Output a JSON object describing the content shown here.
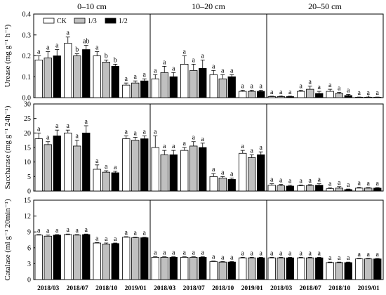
{
  "columns": [
    "0–10 cm",
    "10–20 cm",
    "20–50 cm"
  ],
  "dates": [
    "2018/03",
    "2018/07",
    "2018/10",
    "2019/01"
  ],
  "legend": [
    {
      "name": "CK",
      "color": "#ffffff"
    },
    {
      "name": "1/3",
      "color": "#c0c0c0"
    },
    {
      "name": "1/2",
      "color": "#000000"
    }
  ],
  "chart_data": [
    {
      "type": "bar",
      "ylabel": "Urease (mg g⁻¹ h⁻¹)",
      "ylim": [
        0,
        0.4
      ],
      "yticks": [
        "0.0",
        "0.1",
        "0.2",
        "0.3",
        "0.4"
      ],
      "yticks_values": [
        0,
        0.1,
        0.2,
        0.3,
        0.4
      ],
      "depths": [
        {
          "values": [
            [
              0.18,
              0.19,
              0.2
            ],
            [
              0.26,
              0.2,
              0.23
            ],
            [
              0.2,
              0.17,
              0.15
            ],
            [
              0.06,
              0.07,
              0.08
            ]
          ],
          "errors": [
            [
              0.02,
              0.03,
              0.03
            ],
            [
              0.03,
              0.01,
              0.02
            ],
            [
              0.02,
              0.01,
              0.01
            ],
            [
              0.01,
              0.01,
              0.01
            ]
          ],
          "letters": [
            [
              "a",
              "a",
              "a"
            ],
            [
              "a",
              "b",
              "ab"
            ],
            [
              "a",
              "b",
              "b"
            ],
            [
              "a",
              "a",
              "a"
            ]
          ]
        },
        {
          "values": [
            [
              0.09,
              0.12,
              0.1
            ],
            [
              0.16,
              0.13,
              0.14
            ],
            [
              0.11,
              0.09,
              0.1
            ],
            [
              0.03,
              0.03,
              0.03
            ]
          ],
          "errors": [
            [
              0.02,
              0.03,
              0.02
            ],
            [
              0.04,
              0.03,
              0.04
            ],
            [
              0.02,
              0.02,
              0.01
            ],
            [
              0.005,
              0.005,
              0.005
            ]
          ],
          "letters": [
            [
              "a",
              "a",
              "a"
            ],
            [
              "a",
              "a",
              "a"
            ],
            [
              "a",
              "a",
              "a"
            ],
            [
              "a",
              "a",
              "a"
            ]
          ]
        },
        {
          "values": [
            [
              0.005,
              0.005,
              0.005
            ],
            [
              0.03,
              0.04,
              0.02
            ],
            [
              0.03,
              0.02,
              0.01
            ],
            [
              0.002,
              0.002,
              0.002
            ]
          ],
          "errors": [
            [
              0.002,
              0.002,
              0.002
            ],
            [
              0.005,
              0.015,
              0.01
            ],
            [
              0.01,
              0.005,
              0.005
            ],
            [
              0.001,
              0.001,
              0.001
            ]
          ],
          "letters": [
            [
              "a",
              "a",
              "a"
            ],
            [
              "a",
              "a",
              "a"
            ],
            [
              "a",
              "a",
              "a"
            ],
            [
              "a",
              "a",
              "a"
            ]
          ]
        }
      ]
    },
    {
      "type": "bar",
      "ylabel": "Saccharase (mg g⁻¹ 24h⁻¹)",
      "ylim": [
        0,
        30
      ],
      "yticks": [
        "0",
        "5",
        "10",
        "15",
        "20",
        "25",
        "30"
      ],
      "yticks_values": [
        0,
        5,
        10,
        15,
        20,
        25,
        30
      ],
      "depths": [
        {
          "values": [
            [
              18,
              16,
              19
            ],
            [
              20,
              15.5,
              20
            ],
            [
              7.5,
              6.5,
              6.3
            ],
            [
              18,
              17.5,
              18
            ]
          ],
          "errors": [
            [
              2,
              1,
              2
            ],
            [
              1,
              2,
              2.5
            ],
            [
              1.5,
              0.5,
              0.5
            ],
            [
              1,
              1,
              1
            ]
          ],
          "letters": [
            [
              "a",
              "a",
              "a"
            ],
            [
              "a",
              "a",
              "a"
            ],
            [
              "a",
              "a",
              "a"
            ],
            [
              "a",
              "a",
              "a"
            ]
          ]
        },
        {
          "values": [
            [
              15,
              12.5,
              12.5
            ],
            [
              14,
              15.5,
              15
            ],
            [
              5,
              4.5,
              4
            ],
            [
              13,
              11.5,
              12.5
            ]
          ],
          "errors": [
            [
              4,
              1.5,
              1.5
            ],
            [
              1,
              1.5,
              1.5
            ],
            [
              1,
              0.5,
              0.5
            ],
            [
              1,
              1,
              1
            ]
          ],
          "letters": [
            [
              "a",
              "a",
              "a"
            ],
            [
              "a",
              "a",
              "a"
            ],
            [
              "a",
              "a",
              "a"
            ],
            [
              "a",
              "a",
              "a"
            ]
          ]
        },
        {
          "values": [
            [
              2,
              1.8,
              1.7
            ],
            [
              1.8,
              1.9,
              2
            ],
            [
              0.8,
              1,
              0.5
            ],
            [
              1,
              1,
              1
            ]
          ],
          "errors": [
            [
              0.5,
              0.5,
              0.3
            ],
            [
              0.3,
              0.3,
              0.5
            ],
            [
              0.3,
              0.5,
              0.2
            ],
            [
              0.3,
              0.2,
              0.2
            ]
          ],
          "letters": [
            [
              "a",
              "a",
              "a"
            ],
            [
              "a",
              "a",
              "a"
            ],
            [
              "a",
              "a",
              "a"
            ],
            [
              "a",
              "a",
              "a"
            ]
          ]
        }
      ]
    },
    {
      "type": "bar",
      "ylabel": "Catalase (ml g⁻¹ 20min⁻¹)",
      "ylim": [
        0,
        15
      ],
      "yticks": [
        "0",
        "3",
        "6",
        "9",
        "12",
        "15"
      ],
      "yticks_values": [
        0,
        3,
        6,
        9,
        12,
        15
      ],
      "depths": [
        {
          "values": [
            [
              8.4,
              8.2,
              8.4
            ],
            [
              8.5,
              8.4,
              8.5
            ],
            [
              6.9,
              6.7,
              6.8
            ],
            [
              8.0,
              7.9,
              7.9
            ]
          ],
          "errors": [
            [
              0.1,
              0.2,
              0.1
            ],
            [
              0.1,
              0.1,
              0.1
            ],
            [
              0.1,
              0.2,
              0.1
            ],
            [
              0.1,
              0.1,
              0.1
            ]
          ],
          "letters": [
            [
              "a",
              "a",
              "a"
            ],
            [
              "a",
              "a",
              "a"
            ],
            [
              "a",
              "a",
              "a"
            ],
            [
              "a",
              "a",
              "a"
            ]
          ]
        },
        {
          "values": [
            [
              4.2,
              4.2,
              4.2
            ],
            [
              4.2,
              4.2,
              4.2
            ],
            [
              3.4,
              3.3,
              3.3
            ],
            [
              4.1,
              4.1,
              4.1
            ]
          ],
          "errors": [
            [
              0.1,
              0.1,
              0.1
            ],
            [
              0.1,
              0.1,
              0.1
            ],
            [
              0.1,
              0.1,
              0.1
            ],
            [
              0.1,
              0.1,
              0.1
            ]
          ],
          "letters": [
            [
              "a",
              "a",
              "a"
            ],
            [
              "a",
              "a",
              "a"
            ],
            [
              "a",
              "a",
              "a"
            ],
            [
              "a",
              "a",
              "a"
            ]
          ]
        },
        {
          "values": [
            [
              4.1,
              4.1,
              4.1
            ],
            [
              4.1,
              4.1,
              4.1
            ],
            [
              3.2,
              3.2,
              3.2
            ],
            [
              3.9,
              3.9,
              3.9
            ]
          ],
          "errors": [
            [
              0.1,
              0.1,
              0.1
            ],
            [
              0.1,
              0.1,
              0.1
            ],
            [
              0.1,
              0.1,
              0.1
            ],
            [
              0.1,
              0.1,
              0.1
            ]
          ],
          "letters": [
            [
              "a",
              "a",
              "a"
            ],
            [
              "a",
              "a",
              "a"
            ],
            [
              "a",
              "a",
              "a"
            ],
            [
              "a",
              "a",
              "a"
            ]
          ]
        }
      ]
    }
  ]
}
